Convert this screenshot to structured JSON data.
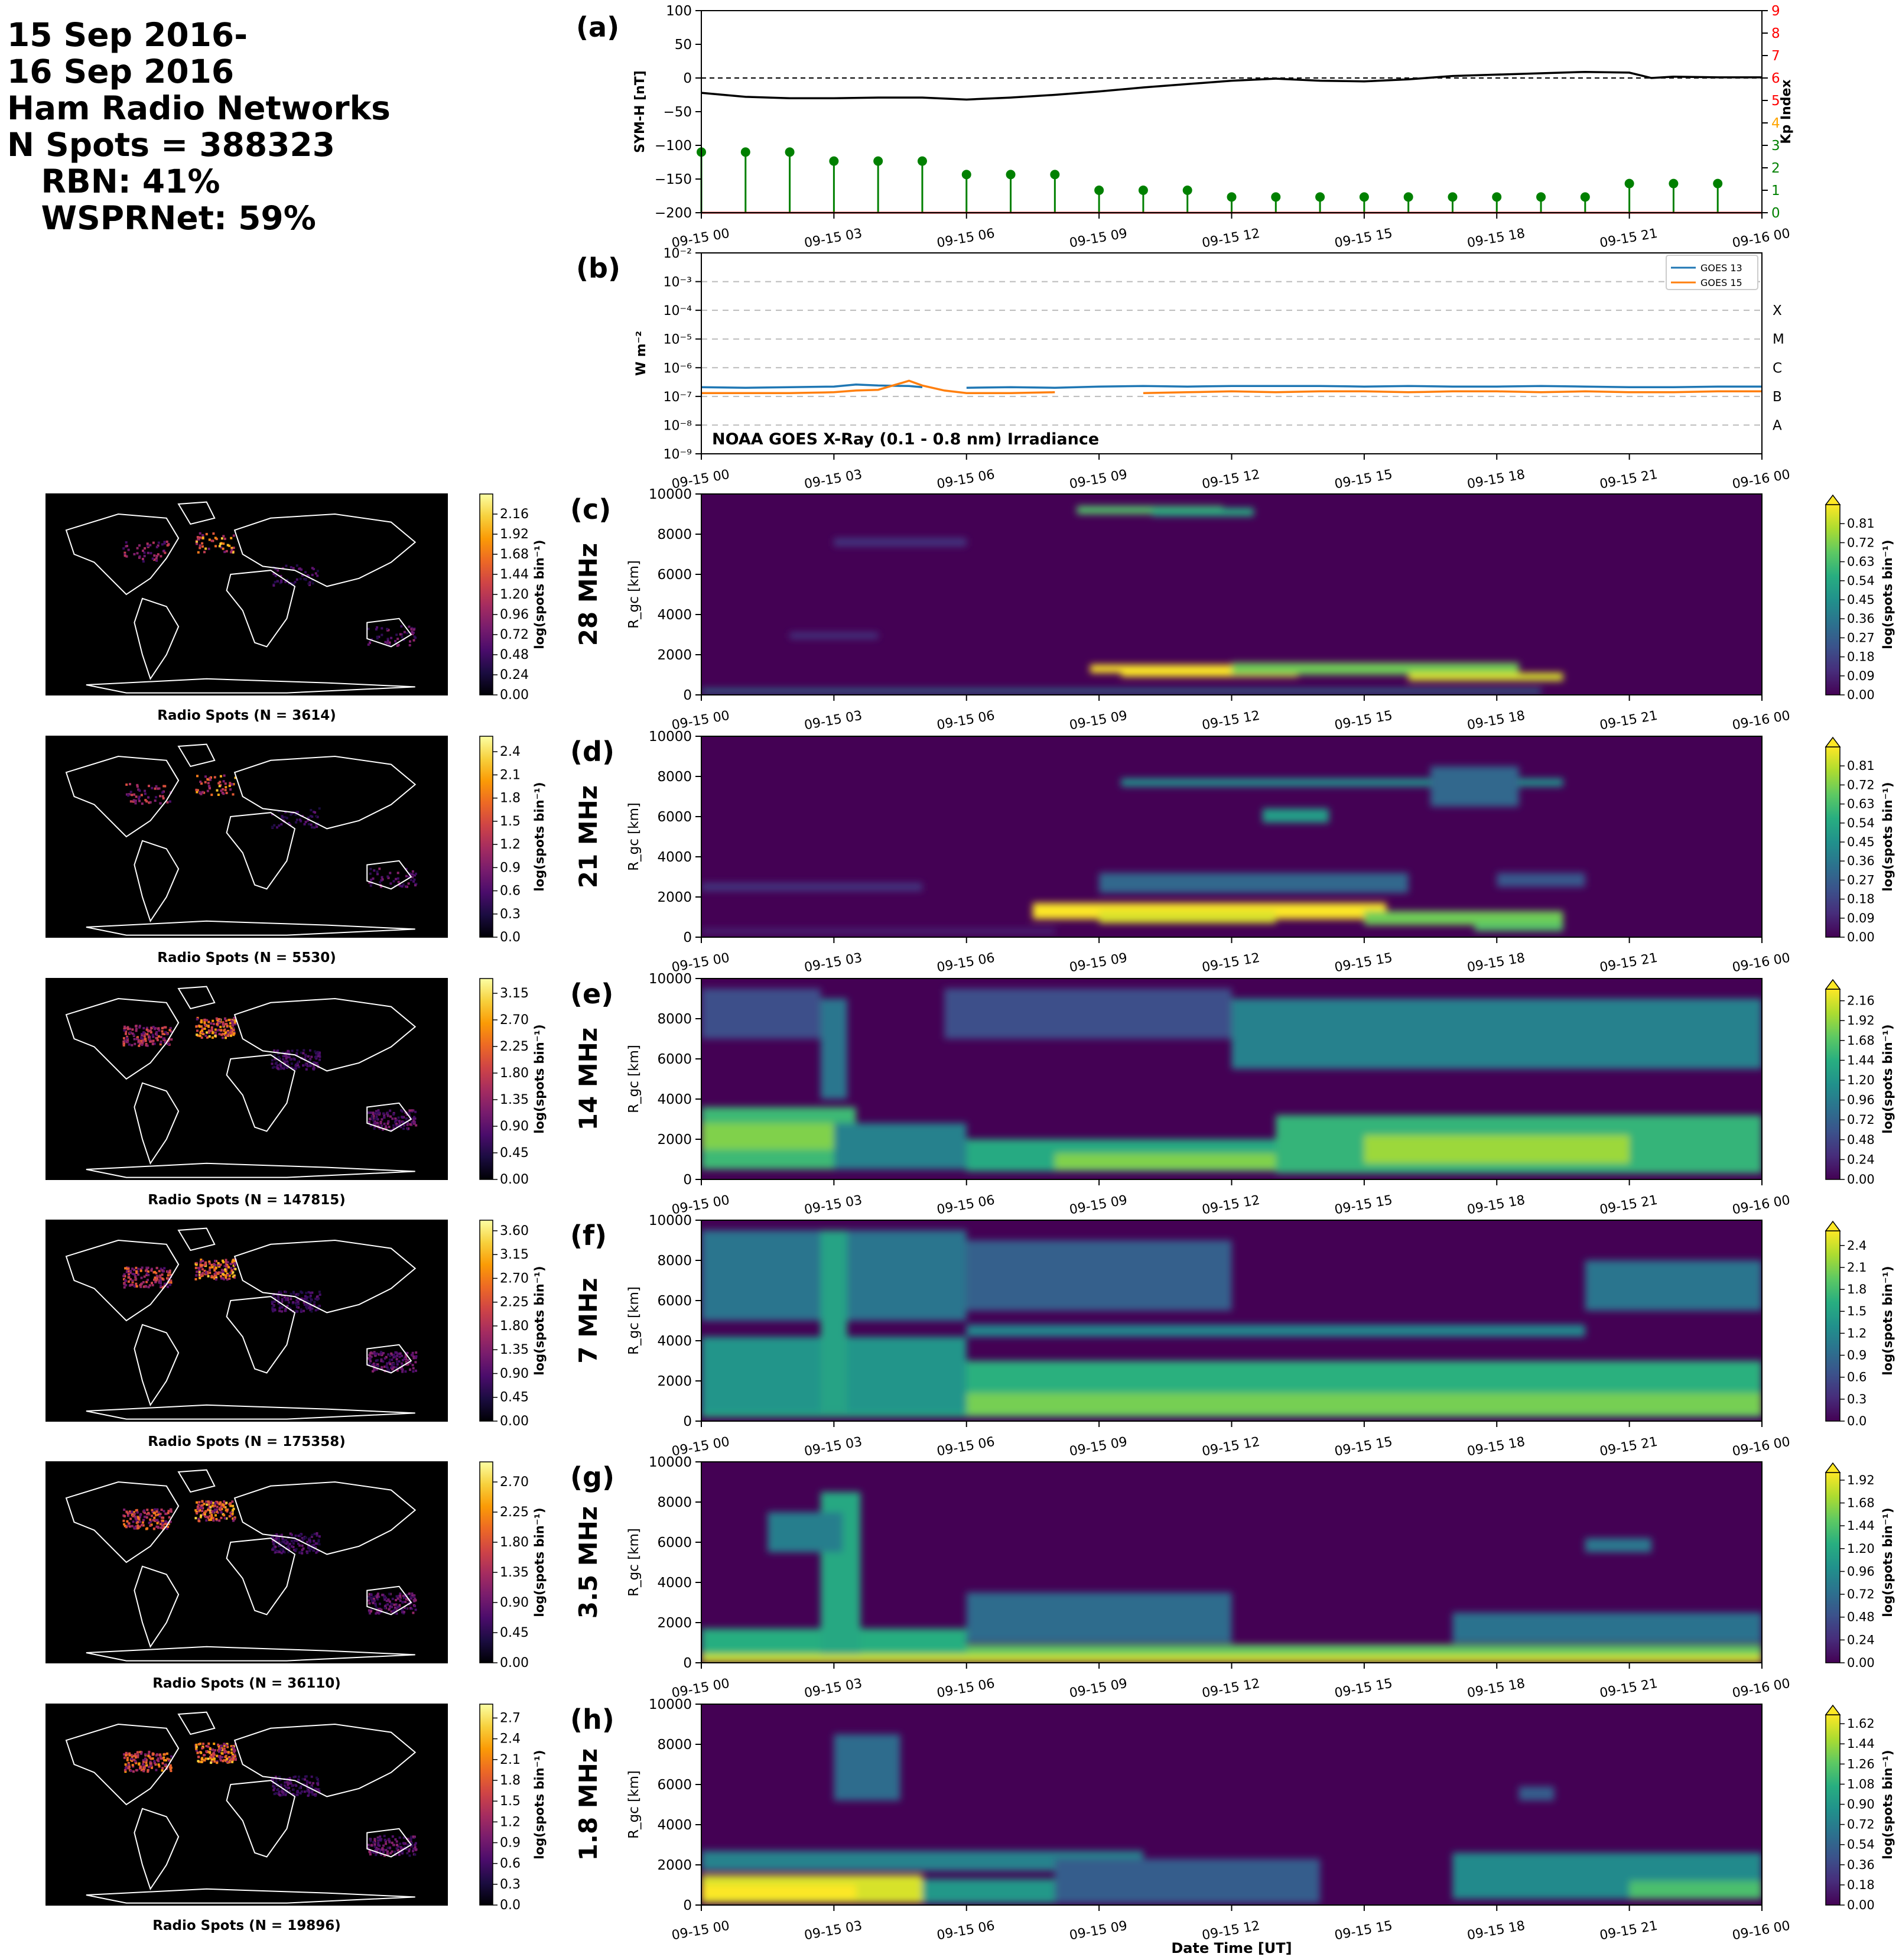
{
  "header": {
    "lines": [
      "15 Sep 2016-",
      "16 Sep 2016",
      "Ham Radio Networks",
      "N Spots = 388323",
      "   RBN: 41%",
      "   WSPRNet: 59%"
    ]
  },
  "time_ticks": [
    "09-15 00",
    "09-15 03",
    "09-15 06",
    "09-15 09",
    "09-15 12",
    "09-15 15",
    "09-15 18",
    "09-15 21",
    "09-16 00"
  ],
  "xlabel": "Date Time [UT]",
  "colorbar_label": "log(spots bin⁻¹)",
  "chart_data": [
    {
      "id": "a",
      "panel_label": "(a)",
      "type": "line",
      "ylabel": "SYM-H [nT]",
      "ylim": [
        -200,
        100
      ],
      "yticks": [
        "100",
        "50",
        "0",
        "−50",
        "−100",
        "−150",
        "−200"
      ],
      "x_hours": [
        0,
        1,
        2,
        3,
        4,
        5,
        6,
        7,
        8,
        9,
        10,
        11,
        12,
        13,
        14,
        15,
        16,
        17,
        18,
        19,
        20,
        21,
        21.5,
        22,
        23,
        24
      ],
      "symh": [
        -22,
        -28,
        -30,
        -30,
        -29,
        -29,
        -32,
        -29,
        -25,
        -20,
        -14,
        -9,
        -4,
        -1,
        -4,
        -5,
        -2,
        3,
        5,
        7,
        9,
        8,
        0,
        2,
        1,
        1
      ],
      "zero_line": 0,
      "secondary": {
        "ylabel": "Kp Index",
        "ylim": [
          0,
          9
        ],
        "yticks": [
          "0",
          "1",
          "2",
          "3",
          "4",
          "5",
          "6",
          "7",
          "8",
          "9"
        ],
        "tick_colors": [
          "#008000",
          "#008000",
          "#008000",
          "#008000",
          "#ffa500",
          "#ff0000",
          "#ff0000",
          "#ff0000",
          "#ff0000",
          "#ff0000"
        ],
        "kp_x_hours": [
          0,
          1,
          2,
          3,
          4,
          5,
          6,
          7,
          8,
          9,
          10,
          11,
          12,
          13,
          14,
          15,
          16,
          17,
          18,
          19,
          20,
          21,
          22,
          23
        ],
        "kp": [
          2.7,
          2.7,
          2.7,
          2.3,
          2.3,
          2.3,
          1.7,
          1.7,
          1.7,
          1.0,
          1.0,
          1.0,
          0.7,
          0.7,
          0.7,
          0.7,
          0.7,
          0.7,
          0.7,
          0.7,
          0.7,
          1.3,
          1.3,
          1.3
        ]
      }
    },
    {
      "id": "b",
      "panel_label": "(b)",
      "type": "line",
      "ylabel": "W m⁻²",
      "yscale": "log",
      "ylim": [
        1e-09,
        0.01
      ],
      "yticks": [
        "10⁻⁹",
        "10⁻⁸",
        "10⁻⁷",
        "10⁻⁶",
        "10⁻⁵",
        "10⁻⁴",
        "10⁻³",
        "10⁻²"
      ],
      "flare_classes": [
        "A",
        "B",
        "C",
        "M",
        "X"
      ],
      "annotation": "NOAA GOES X-Ray (0.1 - 0.8 nm) Irradiance",
      "legend_position": "top-right",
      "x_hours": [
        0,
        1,
        2,
        3,
        3.5,
        4,
        4.7,
        5,
        5.5,
        6,
        7,
        8,
        9,
        10,
        11,
        12,
        13,
        14,
        15,
        16,
        17,
        18,
        19,
        20,
        21,
        22,
        23,
        24
      ],
      "series": [
        {
          "name": "GOES 13",
          "color": "#1f77b4",
          "values": [
            2.1e-07,
            2e-07,
            2.1e-07,
            2.2e-07,
            2.6e-07,
            2.4e-07,
            2.3e-07,
            2.1e-07,
            null,
            2e-07,
            2.1e-07,
            2e-07,
            2.2e-07,
            2.3e-07,
            2.2e-07,
            2.3e-07,
            2.3e-07,
            2.3e-07,
            2.2e-07,
            2.3e-07,
            2.2e-07,
            2.2e-07,
            2.3e-07,
            2.2e-07,
            2.1e-07,
            2.1e-07,
            2.2e-07,
            2.2e-07
          ]
        },
        {
          "name": "GOES 15",
          "color": "#ff7f0e",
          "values": [
            1.3e-07,
            1.3e-07,
            1.3e-07,
            1.4e-07,
            1.6e-07,
            1.7e-07,
            3.5e-07,
            2.4e-07,
            1.6e-07,
            1.3e-07,
            1.3e-07,
            1.4e-07,
            null,
            1.3e-07,
            1.4e-07,
            1.5e-07,
            1.4e-07,
            1.5e-07,
            1.5e-07,
            1.4e-07,
            1.5e-07,
            1.5e-07,
            1.4e-07,
            1.5e-07,
            1.4e-07,
            1.4e-07,
            1.5e-07,
            1.5e-07
          ]
        }
      ]
    },
    {
      "id": "c",
      "panel_label": "(c)",
      "type": "heatmap",
      "band": "28 MHz",
      "ylabel": "R_gc [km]",
      "ylim": [
        0,
        10000
      ],
      "yticks": [
        "0",
        "2000",
        "4000",
        "6000",
        "8000",
        "10000"
      ],
      "colorbar": {
        "max": 0.9,
        "ticks": [
          "0.00",
          "0.09",
          "0.18",
          "0.27",
          "0.36",
          "0.45",
          "0.54",
          "0.63",
          "0.72",
          "0.81"
        ]
      },
      "map": {
        "title": "Radio Spots (N = 3614)",
        "colorbar_ticks": [
          "0.00",
          "0.24",
          "0.48",
          "0.72",
          "0.96",
          "1.20",
          "1.44",
          "1.68",
          "1.92",
          "2.16"
        ],
        "max": 2.4
      },
      "blobs": [
        [
          8.8,
          13.2,
          1100,
          1500,
          0.95
        ],
        [
          9.5,
          13.5,
          900,
          1200,
          0.9
        ],
        [
          12,
          18.5,
          1000,
          1600,
          0.7
        ],
        [
          16,
          19.5,
          700,
          1100,
          0.85
        ],
        [
          8.5,
          11.8,
          9000,
          9400,
          0.65
        ],
        [
          10.2,
          12.5,
          8900,
          9300,
          0.55
        ],
        [
          0,
          19,
          80,
          300,
          0.35
        ],
        [
          3,
          6,
          7400,
          7800,
          0.15
        ],
        [
          2,
          4,
          2800,
          3100,
          0.15
        ]
      ]
    },
    {
      "id": "d",
      "panel_label": "(d)",
      "type": "heatmap",
      "band": "21 MHz",
      "ylabel": "R_gc [km]",
      "ylim": [
        0,
        10000
      ],
      "yticks": [
        "0",
        "2000",
        "4000",
        "6000",
        "8000",
        "10000"
      ],
      "colorbar": {
        "max": 0.9,
        "ticks": [
          "0.00",
          "0.09",
          "0.18",
          "0.27",
          "0.36",
          "0.45",
          "0.54",
          "0.63",
          "0.72",
          "0.81"
        ]
      },
      "map": {
        "title": "Radio Spots (N = 5530)",
        "colorbar_ticks": [
          "0.0",
          "0.3",
          "0.6",
          "0.9",
          "1.2",
          "1.5",
          "1.8",
          "2.1",
          "2.4"
        ],
        "max": 2.6
      },
      "blobs": [
        [
          7.5,
          15.5,
          900,
          1700,
          0.95
        ],
        [
          9,
          13,
          700,
          1300,
          0.85
        ],
        [
          15,
          19.5,
          600,
          1300,
          0.7
        ],
        [
          17.5,
          19.5,
          300,
          700,
          0.65
        ],
        [
          9.5,
          19.5,
          7500,
          7900,
          0.45
        ],
        [
          12.7,
          14.2,
          5700,
          6400,
          0.5
        ],
        [
          9,
          16,
          2200,
          3200,
          0.3
        ],
        [
          16.5,
          18.5,
          6500,
          8500,
          0.3
        ],
        [
          0,
          5,
          2300,
          2700,
          0.15
        ],
        [
          0,
          8,
          200,
          400,
          0.12
        ],
        [
          18,
          20,
          2500,
          3200,
          0.25
        ]
      ]
    },
    {
      "id": "e",
      "panel_label": "(e)",
      "type": "heatmap",
      "band": "14 MHz",
      "ylabel": "R_gc [km]",
      "ylim": [
        0,
        10000
      ],
      "yticks": [
        "0",
        "2000",
        "4000",
        "6000",
        "8000",
        "10000"
      ],
      "colorbar": {
        "max": 2.3,
        "ticks": [
          "0.00",
          "0.24",
          "0.48",
          "0.72",
          "0.96",
          "1.20",
          "1.44",
          "1.68",
          "1.92",
          "2.16"
        ]
      },
      "map": {
        "title": "Radio Spots (N = 147815)",
        "colorbar_ticks": [
          "0.00",
          "0.45",
          "0.90",
          "1.35",
          "1.80",
          "2.25",
          "2.70",
          "3.15"
        ],
        "max": 3.4
      },
      "blobs": [
        [
          0,
          3.5,
          500,
          3600,
          1.55
        ],
        [
          0,
          3,
          1500,
          2800,
          1.85
        ],
        [
          3,
          6,
          500,
          2800,
          1.0
        ],
        [
          6,
          14,
          400,
          2000,
          1.4
        ],
        [
          8,
          13,
          500,
          1300,
          1.85
        ],
        [
          13,
          24,
          300,
          3200,
          1.5
        ],
        [
          15,
          21,
          800,
          2200,
          1.95
        ],
        [
          12,
          24,
          5500,
          9000,
          1.0
        ],
        [
          0,
          2.7,
          7000,
          9500,
          0.55
        ],
        [
          2.7,
          3.3,
          4000,
          9000,
          0.9
        ],
        [
          5.5,
          12,
          7000,
          9500,
          0.55
        ]
      ]
    },
    {
      "id": "f",
      "panel_label": "(f)",
      "type": "heatmap",
      "band": "7 MHz",
      "ylabel": "R_gc [km]",
      "ylim": [
        0,
        10000
      ],
      "yticks": [
        "0",
        "2000",
        "4000",
        "6000",
        "8000",
        "10000"
      ],
      "colorbar": {
        "max": 2.6,
        "ticks": [
          "0.0",
          "0.3",
          "0.6",
          "0.9",
          "1.2",
          "1.5",
          "1.8",
          "2.1",
          "2.4"
        ]
      },
      "map": {
        "title": "Radio Spots (N = 175358)",
        "colorbar_ticks": [
          "0.00",
          "0.45",
          "0.90",
          "1.35",
          "1.80",
          "2.25",
          "2.70",
          "3.15",
          "3.60"
        ],
        "max": 3.8
      },
      "blobs": [
        [
          0,
          24,
          200,
          3000,
          1.65
        ],
        [
          6,
          24,
          300,
          1400,
          2.05
        ],
        [
          0,
          6,
          400,
          4200,
          1.35
        ],
        [
          0,
          6,
          5000,
          9500,
          1.0
        ],
        [
          2.7,
          3.3,
          500,
          9500,
          1.5
        ],
        [
          20,
          24,
          5500,
          8000,
          1.0
        ],
        [
          6,
          20,
          4200,
          4800,
          1.2
        ],
        [
          6,
          12,
          5500,
          9000,
          0.8
        ]
      ]
    },
    {
      "id": "g",
      "panel_label": "(g)",
      "type": "heatmap",
      "band": "3.5 MHz",
      "ylabel": "R_gc [km]",
      "ylim": [
        0,
        10000
      ],
      "yticks": [
        "0",
        "2000",
        "4000",
        "6000",
        "8000",
        "10000"
      ],
      "colorbar": {
        "max": 2.0,
        "ticks": [
          "0.00",
          "0.24",
          "0.48",
          "0.72",
          "0.96",
          "1.20",
          "1.44",
          "1.68",
          "1.92"
        ]
      },
      "map": {
        "title": "Radio Spots (N = 36110)",
        "colorbar_ticks": [
          "0.00",
          "0.45",
          "0.90",
          "1.35",
          "1.80",
          "2.25",
          "2.70"
        ],
        "max": 3.0
      },
      "blobs": [
        [
          0,
          24,
          0,
          900,
          1.5
        ],
        [
          0,
          6,
          500,
          1700,
          1.25
        ],
        [
          2.7,
          3.6,
          300,
          8500,
          1.2
        ],
        [
          1.5,
          3.2,
          5500,
          7500,
          0.85
        ],
        [
          6,
          12,
          1000,
          3500,
          0.7
        ],
        [
          17,
          24,
          1000,
          2500,
          0.75
        ],
        [
          20,
          21.5,
          5500,
          6200,
          0.8
        ],
        [
          0,
          24,
          0,
          400,
          1.85
        ]
      ]
    },
    {
      "id": "h",
      "panel_label": "(h)",
      "type": "heatmap",
      "band": "1.8 MHz",
      "ylabel": "R_gc [km]",
      "ylim": [
        0,
        10000
      ],
      "yticks": [
        "0",
        "2000",
        "4000",
        "6000",
        "8000",
        "10000"
      ],
      "colorbar": {
        "max": 1.7,
        "ticks": [
          "0.00",
          "0.18",
          "0.36",
          "0.54",
          "0.72",
          "0.90",
          "1.08",
          "1.26",
          "1.44",
          "1.62"
        ]
      },
      "map": {
        "title": "Radio Spots (N = 19896)",
        "colorbar_ticks": [
          "0.0",
          "0.3",
          "0.6",
          "0.9",
          "1.2",
          "1.5",
          "1.8",
          "2.1",
          "2.4",
          "2.7"
        ],
        "max": 2.9
      },
      "blobs": [
        [
          0,
          5,
          100,
          1500,
          1.6
        ],
        [
          0,
          3.5,
          300,
          1000,
          1.7
        ],
        [
          5,
          8,
          100,
          1300,
          0.9
        ],
        [
          0,
          10,
          1700,
          2700,
          0.75
        ],
        [
          8,
          14,
          100,
          2300,
          0.5
        ],
        [
          17,
          24,
          300,
          2600,
          0.8
        ],
        [
          21,
          24,
          300,
          1200,
          1.2
        ],
        [
          3,
          4.5,
          5200,
          8500,
          0.6
        ],
        [
          18.5,
          19.3,
          5200,
          5900,
          0.5
        ]
      ]
    }
  ]
}
